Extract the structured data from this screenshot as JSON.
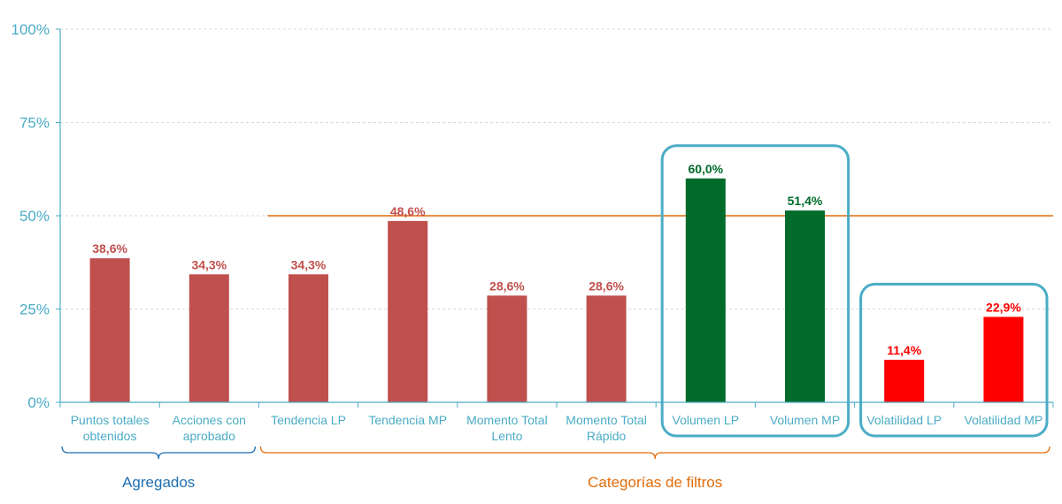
{
  "chart_data": {
    "type": "bar",
    "categories": [
      [
        "Puntos totales",
        "obtenidos"
      ],
      [
        "Acciones con",
        "aprobado"
      ],
      [
        "Tendencia LP"
      ],
      [
        "Tendencia MP"
      ],
      [
        "Momento Total",
        "Lento"
      ],
      [
        "Momento Total",
        "Rápido"
      ],
      [
        "Volumen LP"
      ],
      [
        "Volumen MP"
      ],
      [
        "Volatilidad LP"
      ],
      [
        "Volatilidad MP"
      ]
    ],
    "values": [
      38.6,
      34.3,
      34.3,
      48.6,
      28.6,
      28.6,
      60.0,
      51.4,
      11.4,
      22.9
    ],
    "data_labels": [
      "38,6%",
      "34,3%",
      "34,3%",
      "48,6%",
      "28,6%",
      "28,6%",
      "60,0%",
      "51,4%",
      "11,4%",
      "22,9%"
    ],
    "bar_colors": [
      "#c0504d",
      "#c0504d",
      "#c0504d",
      "#c0504d",
      "#c0504d",
      "#c0504d",
      "#006b2a",
      "#006b2a",
      "#ff0000",
      "#ff0000"
    ],
    "label_colors": [
      "#c0504d",
      "#c0504d",
      "#c0504d",
      "#c0504d",
      "#c0504d",
      "#c0504d",
      "#006b2a",
      "#006b2a",
      "#ff0000",
      "#ff0000"
    ],
    "ylim": [
      0,
      100
    ],
    "yticks": [
      0,
      25,
      50,
      75,
      100
    ],
    "ytick_labels": [
      "0%",
      "25%",
      "50%",
      "75%",
      "100%"
    ],
    "grid": true,
    "reference_line": {
      "value": 50,
      "color": "#e36c09"
    },
    "groups": [
      {
        "label": "Agregados",
        "from": 0,
        "to": 1,
        "color": "#1f6fb2"
      },
      {
        "label": "Categorías de filtros",
        "from": 2,
        "to": 9,
        "color": "#e36c09"
      }
    ],
    "highlight_boxes": [
      {
        "from": 6,
        "to": 7,
        "color": "#4bacc6"
      },
      {
        "from": 8,
        "to": 9,
        "color": "#4bacc6"
      }
    ],
    "axis_color": "#4bacc6"
  }
}
